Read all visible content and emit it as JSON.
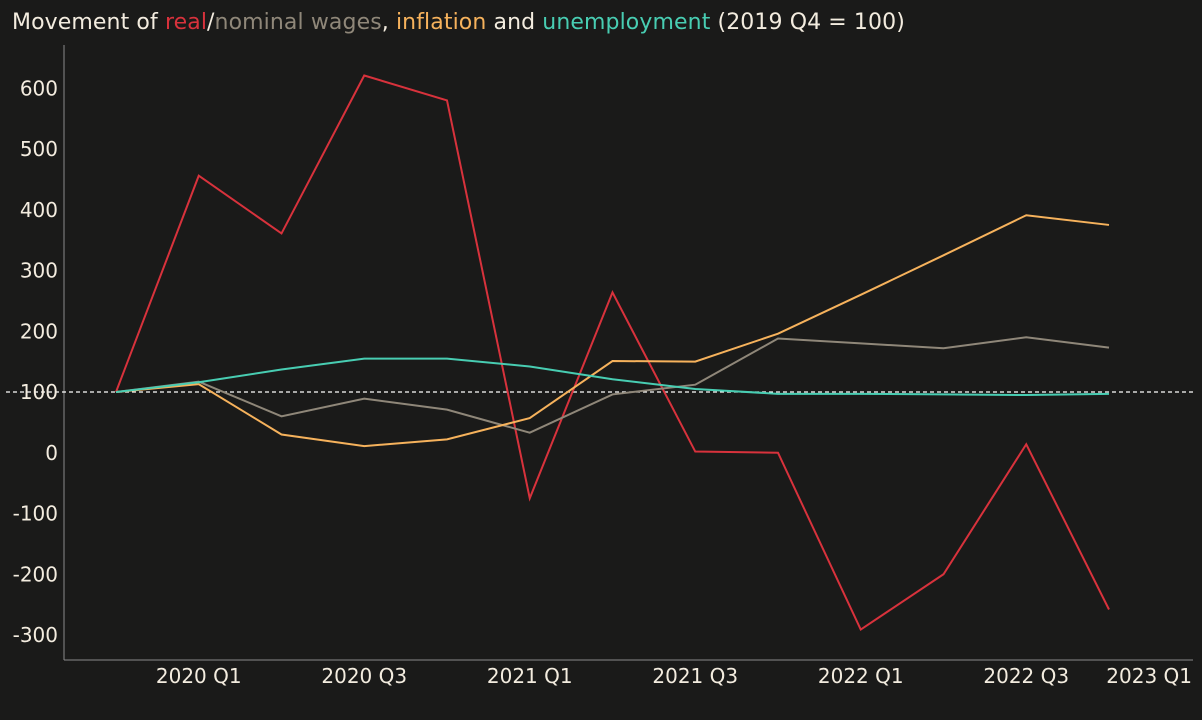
{
  "title": {
    "lead": "Movement of ",
    "real": "real",
    "slash": "/",
    "nominal": "nominal wages",
    "comma": ", ",
    "inflation": "inflation",
    "and": " and ",
    "unemployment": "unemployment",
    "tail": " (2019 Q4 = 100)"
  },
  "colors": {
    "real": "#d8323c",
    "nominal": "#8f8779",
    "inflation": "#f6b25c",
    "unemployment": "#48cdb2",
    "text": "#f3ecdf",
    "baseline": "#ffffff",
    "axis": "#8a8a8a",
    "background": "#1a1a19"
  },
  "chart_data": {
    "type": "line",
    "title": "Movement of real/nominal wages, inflation and unemployment (2019 Q4 = 100)",
    "x": [
      "2019 Q4",
      "2020 Q1",
      "2020 Q2",
      "2020 Q3",
      "2020 Q4",
      "2021 Q1",
      "2021 Q2",
      "2021 Q3",
      "2021 Q4",
      "2022 Q1",
      "2022 Q2",
      "2022 Q3",
      "2023 Q1"
    ],
    "x_tick_labels": [
      "2020 Q1",
      "2020 Q3",
      "2021 Q1",
      "2021 Q3",
      "2022 Q1",
      "2022 Q3",
      "2023 Q1"
    ],
    "y_ticks": [
      600,
      500,
      400,
      300,
      200,
      100,
      0,
      -100,
      -200,
      -300
    ],
    "ylim": [
      -340,
      680
    ],
    "reference_line": 100,
    "grid": false,
    "legend": "in title",
    "series": [
      {
        "name": "real",
        "color_key": "real",
        "values": [
          100,
          456,
          361,
          621,
          580,
          -75,
          264,
          2,
          0,
          -291,
          -200,
          14,
          -258
        ]
      },
      {
        "name": "nominal wages",
        "color_key": "nominal",
        "values": [
          100,
          117,
          60,
          89,
          71,
          33,
          96,
          112,
          188,
          180,
          172,
          190,
          173
        ]
      },
      {
        "name": "inflation",
        "color_key": "inflation",
        "values": [
          100,
          113,
          30,
          11,
          22,
          57,
          151,
          150,
          196,
          260,
          325,
          391,
          375
        ]
      },
      {
        "name": "unemployment",
        "color_key": "unemployment",
        "values": [
          100,
          116,
          137,
          155,
          155,
          142,
          121,
          105,
          97,
          97,
          96,
          95,
          97
        ]
      }
    ]
  }
}
